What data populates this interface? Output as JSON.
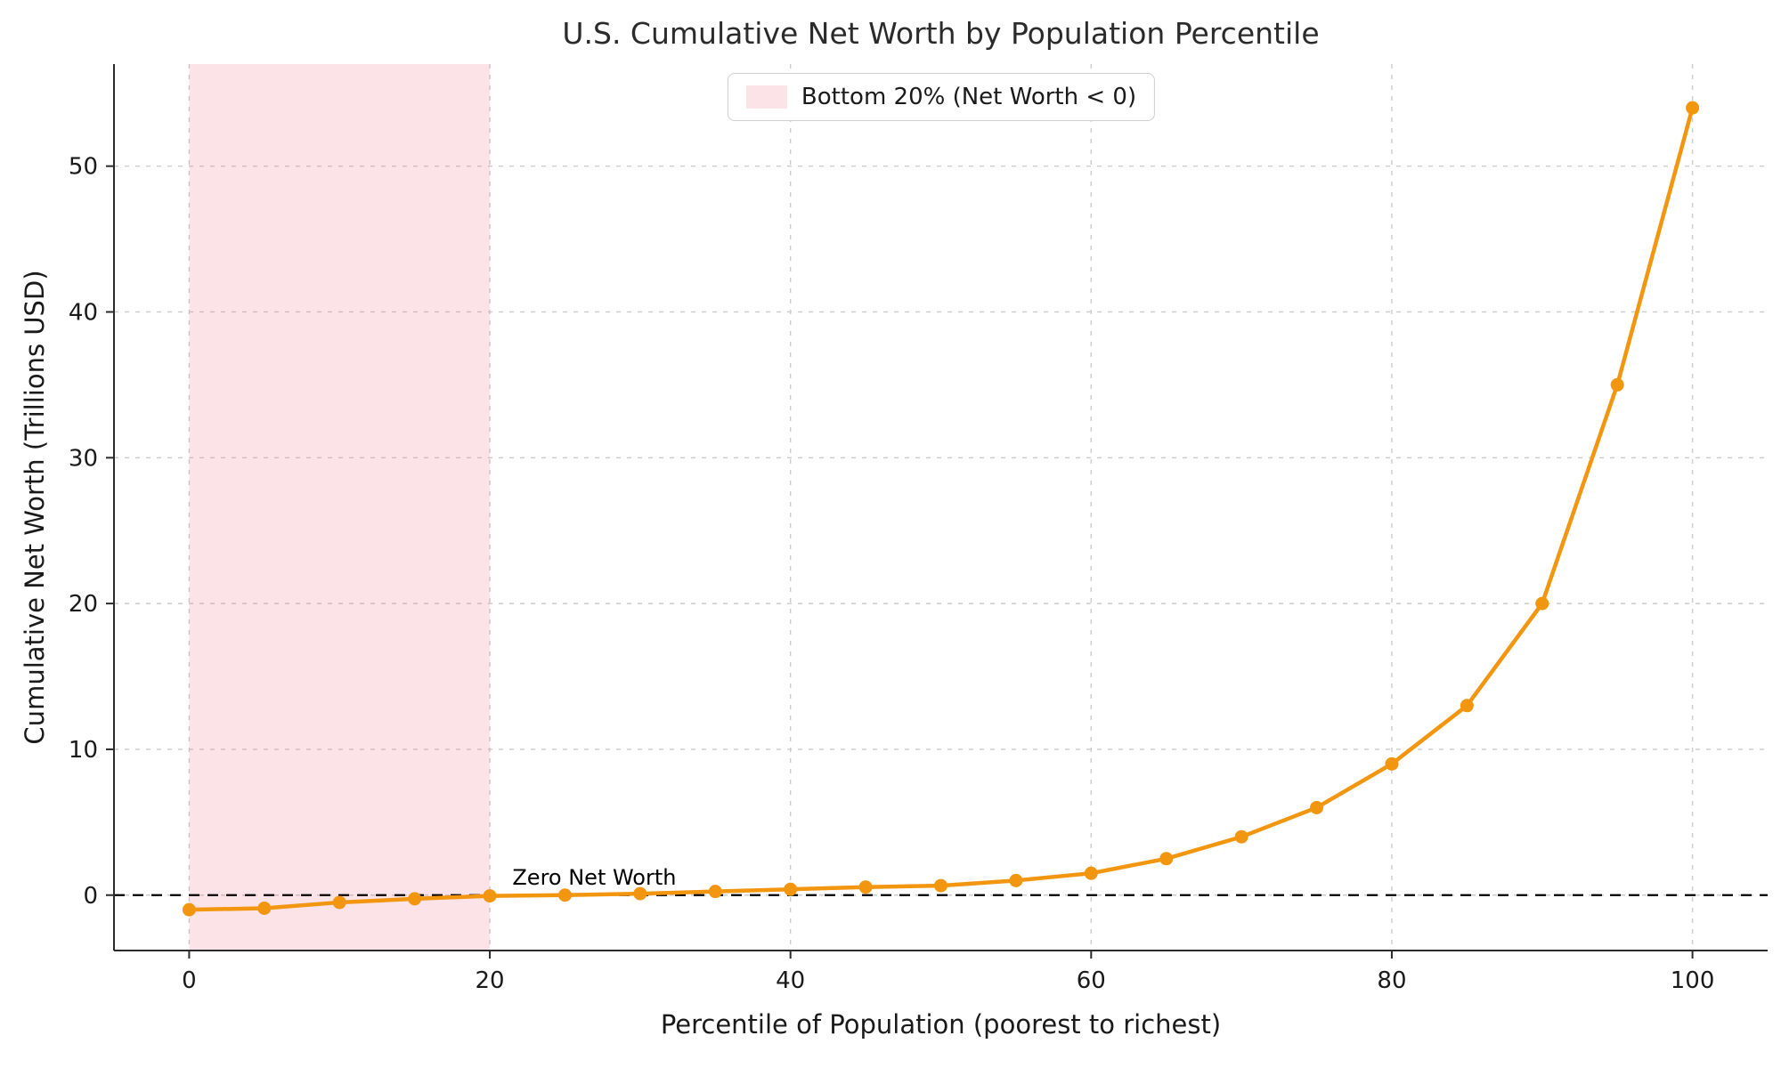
{
  "chart_data": {
    "type": "line",
    "title": "U.S. Cumulative Net Worth by Population Percentile",
    "xlabel": "Percentile of Population (poorest to richest)",
    "ylabel": "Cumulative Net Worth (Trillions USD)",
    "series_name": "Cumulative Net Worth",
    "x": [
      0,
      5,
      10,
      15,
      20,
      25,
      30,
      35,
      40,
      45,
      50,
      55,
      60,
      65,
      70,
      75,
      80,
      85,
      90,
      95,
      100
    ],
    "y": [
      -1.0,
      -0.9,
      -0.5,
      -0.25,
      -0.05,
      0.0,
      0.1,
      0.25,
      0.4,
      0.55,
      0.65,
      1.0,
      1.5,
      2.5,
      4.0,
      6.0,
      9.0,
      13.0,
      20.0,
      35.0,
      54.0
    ],
    "xlim": [
      -5,
      105
    ],
    "ylim": [
      -3.8,
      57
    ],
    "xticks": [
      0,
      20,
      40,
      60,
      80,
      100
    ],
    "yticks": [
      0,
      10,
      20,
      30,
      40,
      50
    ],
    "grid": true,
    "legend": {
      "position": "upper center",
      "entries": [
        {
          "label": "Bottom 20% (Net Worth < 0)",
          "swatch": "shaded-region"
        }
      ]
    },
    "shaded_region": {
      "x_from": 0,
      "x_to": 20
    },
    "zero_line": {
      "y": 0,
      "style": "dashed",
      "label": "Zero Net Worth",
      "label_x": 21.5
    },
    "colors": {
      "line": "#f3960f",
      "marker": "#f3960f",
      "region": "rgba(240, 100, 120, 0.18)",
      "grid": "#cccccc",
      "zero_line": "#000000",
      "spine": "#2b2b2b",
      "text": "#1a1a1a"
    }
  }
}
